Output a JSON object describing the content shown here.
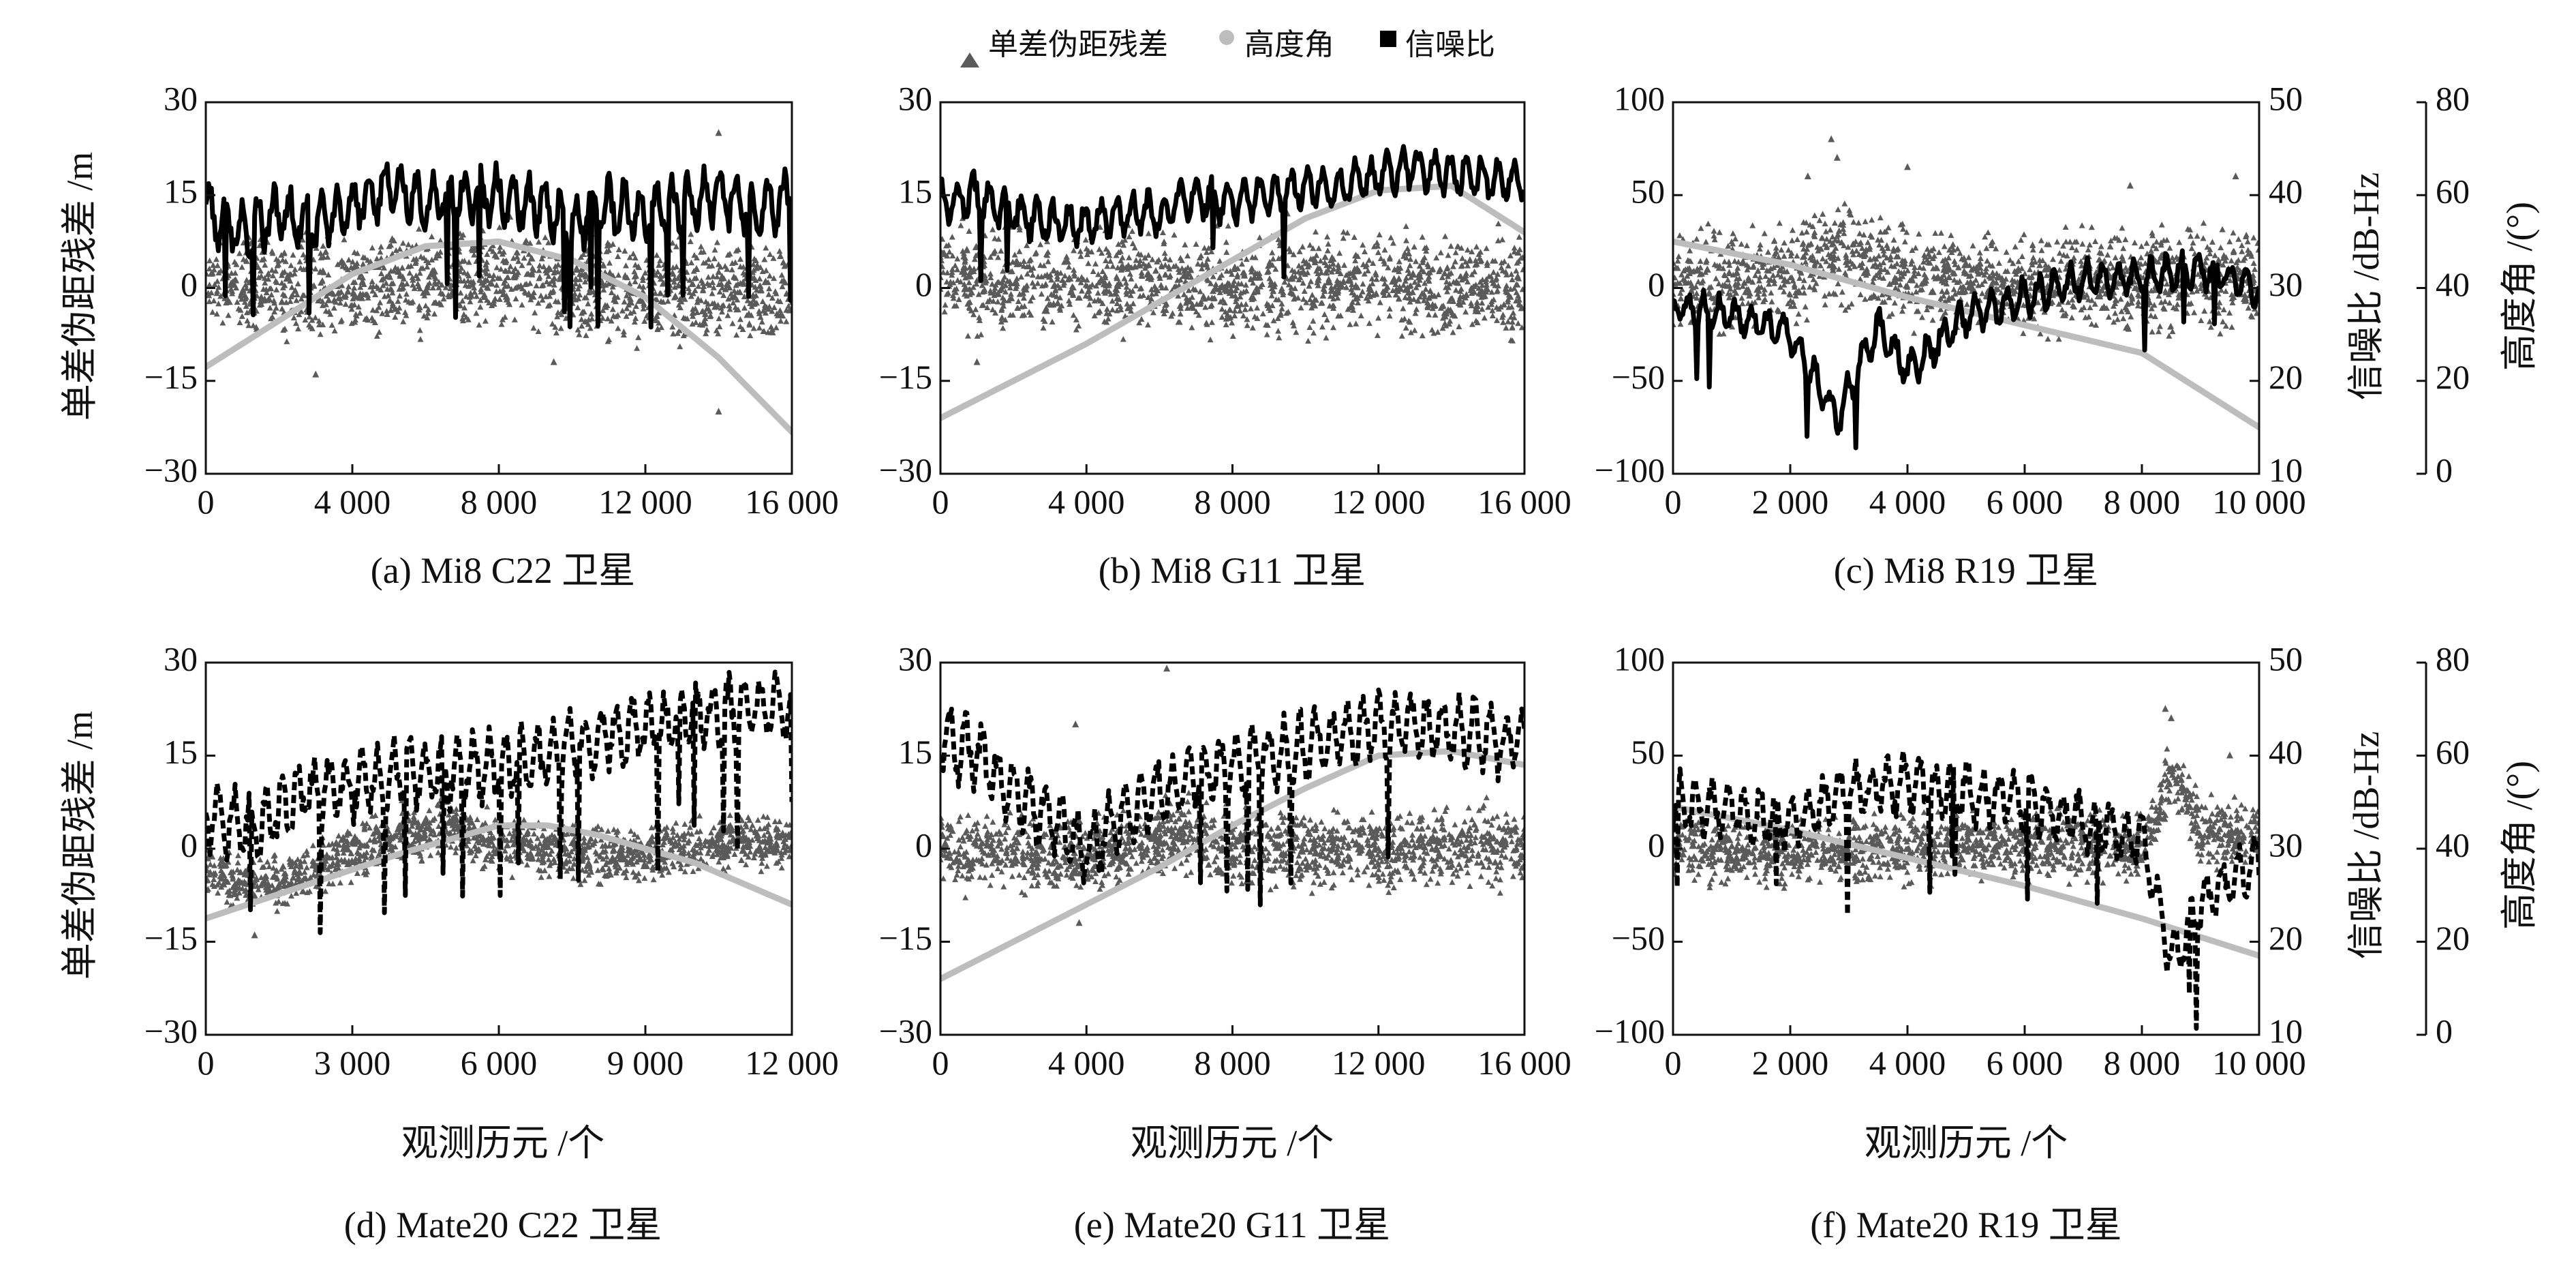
{
  "legend": {
    "residual": "单差伪距残差",
    "elevation": "高度角",
    "snr": "信噪比"
  },
  "colors": {
    "residual": "#5a5a5a",
    "elevation": "#bdbdbd",
    "snr": "#000000",
    "axis": "#111111"
  },
  "shared": {
    "xlabel": "观测历元 /个",
    "ylabel_left": "单差伪距残差 /m",
    "ylabel_snr": "信噪比 /dB-Hz",
    "ylabel_elev": "高度角 /(°)"
  },
  "chart_data": [
    {
      "id": "a",
      "type": "scatter",
      "caption": "(a) Mi8  C22 卫星",
      "xlim": [
        0,
        16000
      ],
      "xticks": [
        0,
        4000,
        8000,
        12000,
        16000
      ],
      "xtick_labels": [
        "0",
        "4 000",
        "8 000",
        "12 000",
        "16 000"
      ],
      "ylim": [
        -30,
        30
      ],
      "yticks": [
        -30,
        -15,
        0,
        15,
        30
      ],
      "ytick_labels": [
        "−30",
        "−15",
        "0",
        "15",
        "30"
      ],
      "snr_ylim": [
        10,
        50
      ],
      "elev_ylim": [
        0,
        80
      ],
      "series": [
        {
          "name": "单差伪距残差",
          "kind": "residual",
          "noise": 4.5,
          "x": [
            0,
            2000,
            4000,
            6000,
            8000,
            10000,
            12000,
            14000,
            16000
          ],
          "y": [
            1,
            0,
            0,
            1,
            2,
            0,
            -1,
            0,
            -1
          ],
          "outliers": [
            [
              14000,
              25
            ],
            [
              14000,
              -20
            ],
            [
              3000,
              -14
            ],
            [
              9500,
              -12
            ]
          ]
        },
        {
          "name": "信噪比",
          "kind": "snr",
          "axis": "snr",
          "oscillation": 2.5,
          "x": [
            0,
            1000,
            2000,
            3000,
            4000,
            5000,
            6000,
            7000,
            8000,
            9000,
            10000,
            11000,
            12000,
            13000,
            14000,
            15000,
            16000
          ],
          "y": [
            38,
            36,
            38,
            37,
            39,
            41,
            39,
            40,
            40,
            39,
            37,
            39,
            38,
            39,
            40,
            38,
            40
          ]
        },
        {
          "name": "高度角",
          "kind": "elevation",
          "axis": "elev",
          "x": [
            0,
            2000,
            4000,
            6000,
            8000,
            10000,
            12000,
            14000,
            16000
          ],
          "y": [
            23,
            33,
            43,
            49,
            50,
            46,
            38,
            25,
            9
          ]
        }
      ]
    },
    {
      "id": "b",
      "type": "scatter",
      "caption": "(b) Mi8  G11 卫星",
      "xlim": [
        0,
        16000
      ],
      "xticks": [
        0,
        4000,
        8000,
        12000,
        16000
      ],
      "xtick_labels": [
        "0",
        "4 000",
        "8 000",
        "12 000",
        "16 000"
      ],
      "ylim": [
        -30,
        30
      ],
      "yticks": [
        -30,
        -15,
        0,
        15,
        30
      ],
      "ytick_labels": [
        "−30",
        "−15",
        "0",
        "15",
        "30"
      ],
      "snr_ylim": [
        10,
        50
      ],
      "elev_ylim": [
        0,
        80
      ],
      "series": [
        {
          "name": "单差伪距残差",
          "kind": "residual",
          "noise": 4.5,
          "x": [
            0,
            2000,
            4000,
            6000,
            8000,
            10000,
            12000,
            14000,
            16000
          ],
          "y": [
            2,
            1,
            1,
            1,
            0,
            1,
            1,
            0,
            0
          ],
          "outliers": [
            [
              1000,
              -12
            ],
            [
              9500,
              12
            ]
          ]
        },
        {
          "name": "信噪比",
          "kind": "snr",
          "axis": "snr",
          "oscillation": 1.8,
          "x": [
            0,
            1000,
            2000,
            3000,
            4000,
            5000,
            6000,
            7000,
            8000,
            9000,
            10000,
            11000,
            12000,
            13000,
            14000,
            15000,
            16000
          ],
          "y": [
            39,
            40,
            38,
            37,
            37,
            38,
            38,
            40,
            39,
            40,
            41,
            41,
            42,
            43,
            42,
            42,
            41
          ]
        },
        {
          "name": "高度角",
          "kind": "elevation",
          "axis": "elev",
          "x": [
            0,
            2000,
            4000,
            6000,
            8000,
            10000,
            12000,
            14000,
            16000
          ],
          "y": [
            12,
            20,
            28,
            37,
            46,
            55,
            61,
            62,
            52
          ]
        }
      ]
    },
    {
      "id": "c",
      "type": "scatter",
      "caption": "(c) Mi8  R19 卫星",
      "xlim": [
        0,
        10000
      ],
      "xticks": [
        0,
        2000,
        4000,
        6000,
        8000,
        10000
      ],
      "xtick_labels": [
        "0",
        "2 000",
        "4 000",
        "6 000",
        "8 000",
        "10 000"
      ],
      "ylim": [
        -100,
        100
      ],
      "yticks": [
        -100,
        -50,
        0,
        50,
        100
      ],
      "ytick_labels": [
        "−100",
        "−50",
        "0",
        "50",
        "100"
      ],
      "snr_ylim": [
        10,
        50
      ],
      "snr_yticks": [
        10,
        20,
        30,
        40,
        50
      ],
      "snr_ytick_labels": [
        "10",
        "20",
        "30",
        "40",
        "50"
      ],
      "elev_ylim": [
        0,
        80
      ],
      "elev_yticks": [
        0,
        20,
        40,
        60,
        80
      ],
      "elev_ytick_labels": [
        "0",
        "20",
        "40",
        "60",
        "80"
      ],
      "series": [
        {
          "name": "单差伪距残差",
          "kind": "residual",
          "noise": 15,
          "x": [
            0,
            2000,
            2800,
            4000,
            6000,
            8000,
            10000
          ],
          "y": [
            5,
            5,
            20,
            5,
            3,
            5,
            5
          ],
          "outliers": [
            [
              2700,
              80
            ],
            [
              2800,
              70
            ],
            [
              2300,
              60
            ],
            [
              4000,
              65
            ],
            [
              9600,
              60
            ],
            [
              7800,
              55
            ]
          ]
        },
        {
          "name": "信噪比",
          "kind": "snr",
          "axis": "snr",
          "oscillation": 1.6,
          "x": [
            0,
            1000,
            2000,
            2800,
            3500,
            4000,
            5000,
            6000,
            7000,
            8000,
            9000,
            10000
          ],
          "y": [
            28,
            27,
            25,
            16,
            26,
            21,
            27,
            29,
            31,
            31,
            32,
            30
          ]
        },
        {
          "name": "高度角",
          "kind": "elevation",
          "axis": "elev",
          "x": [
            0,
            2000,
            4000,
            6000,
            8000,
            10000
          ],
          "y": [
            50,
            45,
            38,
            32,
            26,
            10
          ]
        }
      ]
    },
    {
      "id": "d",
      "type": "scatter",
      "caption": "(d) Mate20  C22 卫星",
      "xlim": [
        0,
        12000
      ],
      "xticks": [
        0,
        3000,
        6000,
        9000,
        12000
      ],
      "xtick_labels": [
        "0",
        "3 000",
        "6 000",
        "9 000",
        "12 000"
      ],
      "ylim": [
        -30,
        30
      ],
      "yticks": [
        -30,
        -15,
        0,
        15,
        30
      ],
      "ytick_labels": [
        "−30",
        "−15",
        "0",
        "15",
        "30"
      ],
      "snr_ylim": [
        10,
        50
      ],
      "elev_ylim": [
        0,
        80
      ],
      "series": [
        {
          "name": "单差伪距残差",
          "kind": "residual",
          "noise": 2.5,
          "x": [
            0,
            1000,
            2000,
            3000,
            4000,
            5000,
            6000,
            7000,
            8000,
            9000,
            10000,
            11000,
            12000
          ],
          "y": [
            -4,
            -6,
            -4,
            0,
            2,
            3,
            1,
            0,
            -1,
            -1,
            0,
            1,
            1
          ],
          "outliers": [
            [
              1000,
              -14
            ]
          ]
        },
        {
          "name": "信噪比",
          "kind": "snr",
          "axis": "snr",
          "style": "dashed",
          "oscillation": 3,
          "x": [
            0,
            1000,
            2000,
            3000,
            4000,
            5000,
            6000,
            7000,
            8000,
            9000,
            10000,
            11000,
            12000
          ],
          "y": [
            34,
            32,
            36,
            37,
            38,
            38,
            39,
            40,
            42,
            43,
            44,
            45,
            45
          ]
        },
        {
          "name": "高度角",
          "kind": "elevation",
          "axis": "elev",
          "x": [
            0,
            2000,
            4000,
            6000,
            7000,
            8000,
            10000,
            12000
          ],
          "y": [
            25,
            32,
            39,
            45,
            45,
            43,
            37,
            28
          ]
        }
      ]
    },
    {
      "id": "e",
      "type": "scatter",
      "caption": "(e) Mate20  G11 卫星",
      "xlim": [
        0,
        16000
      ],
      "xticks": [
        0,
        4000,
        8000,
        12000,
        16000
      ],
      "xtick_labels": [
        "0",
        "4 000",
        "8 000",
        "12 000",
        "16 000"
      ],
      "ylim": [
        -30,
        30
      ],
      "yticks": [
        -30,
        -15,
        0,
        15,
        30
      ],
      "ytick_labels": [
        "−30",
        "−15",
        "0",
        "15",
        "30"
      ],
      "snr_ylim": [
        10,
        50
      ],
      "elev_ylim": [
        0,
        80
      ],
      "series": [
        {
          "name": "单差伪距残差",
          "kind": "residual",
          "noise": 3.5,
          "x": [
            0,
            2000,
            4000,
            6000,
            8000,
            10000,
            12000,
            14000,
            16000
          ],
          "y": [
            -1,
            0,
            -2,
            2,
            1,
            0,
            0,
            0,
            1
          ],
          "outliers": [
            [
              6200,
              29
            ],
            [
              3700,
              20
            ],
            [
              3800,
              -12
            ]
          ]
        },
        {
          "name": "信噪比",
          "kind": "snr",
          "axis": "snr",
          "style": "dashed",
          "oscillation": 3,
          "x": [
            0,
            1000,
            2000,
            3000,
            4000,
            5000,
            6000,
            7000,
            8000,
            9000,
            10000,
            11000,
            12000,
            13000,
            14000,
            15000,
            16000
          ],
          "y": [
            42,
            40,
            36,
            33,
            30,
            33,
            36,
            38,
            39,
            40,
            41,
            42,
            43,
            43,
            43,
            42,
            41
          ]
        },
        {
          "name": "高度角",
          "kind": "elevation",
          "axis": "elev",
          "x": [
            0,
            2000,
            4000,
            6000,
            8000,
            10000,
            12000,
            14000,
            16000
          ],
          "y": [
            12,
            20,
            28,
            36,
            45,
            53,
            60,
            61,
            58
          ]
        }
      ]
    },
    {
      "id": "f",
      "type": "scatter",
      "caption": "(f) Mate20  R19 卫星",
      "xlim": [
        0,
        10000
      ],
      "xticks": [
        0,
        2000,
        4000,
        6000,
        8000,
        10000
      ],
      "xtick_labels": [
        "0",
        "2 000",
        "4 000",
        "6 000",
        "8 000",
        "10 000"
      ],
      "ylim": [
        -100,
        100
      ],
      "yticks": [
        -100,
        -50,
        0,
        50,
        100
      ],
      "ytick_labels": [
        "−100",
        "−50",
        "0",
        "50",
        "100"
      ],
      "snr_ylim": [
        10,
        50
      ],
      "snr_yticks": [
        10,
        20,
        30,
        40,
        50
      ],
      "snr_ytick_labels": [
        "10",
        "20",
        "30",
        "40",
        "50"
      ],
      "elev_ylim": [
        0,
        80
      ],
      "elev_yticks": [
        0,
        20,
        40,
        60,
        80
      ],
      "elev_ytick_labels": [
        "0",
        "20",
        "40",
        "60",
        "80"
      ],
      "series": [
        {
          "name": "单差伪距残差",
          "kind": "residual",
          "noise": 10,
          "x": [
            0,
            2000,
            4000,
            6000,
            8000,
            8500,
            9000,
            10000
          ],
          "y": [
            0,
            -2,
            0,
            2,
            0,
            40,
            10,
            5
          ],
          "outliers": [
            [
              8400,
              75
            ],
            [
              8500,
              70
            ],
            [
              9500,
              50
            ]
          ]
        },
        {
          "name": "信噪比",
          "kind": "snr",
          "axis": "snr",
          "style": "dashed",
          "oscillation": 2.5,
          "x": [
            0,
            1000,
            2000,
            3000,
            4000,
            5000,
            6000,
            7000,
            8000,
            8500,
            9000,
            10000
          ],
          "y": [
            35,
            34,
            33,
            36,
            37,
            36,
            35,
            33,
            31,
            18,
            24,
            29
          ]
        },
        {
          "name": "高度角",
          "kind": "elevation",
          "axis": "elev",
          "x": [
            0,
            2000,
            4000,
            6000,
            8000,
            10000
          ],
          "y": [
            49,
            44,
            38,
            32,
            25,
            17
          ]
        }
      ]
    }
  ]
}
